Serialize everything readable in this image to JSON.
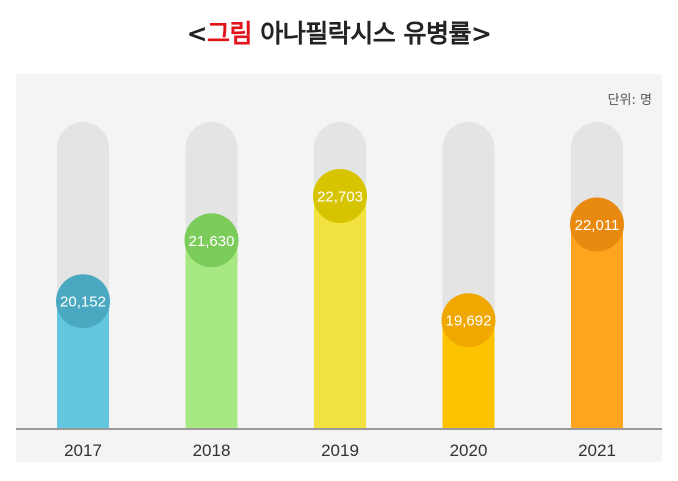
{
  "title": {
    "open": "<",
    "prefix": "그림",
    "rest": " 아나필락시스 유병률",
    "close": ">"
  },
  "colors": {
    "panel": "#f4f4f4",
    "track": "#e4e4e4",
    "title_accent": "#e0121a"
  },
  "chart_data": {
    "type": "bar",
    "title": "<그림 아나필락시스 유병률>",
    "unit_label": "단위: 명",
    "xlabel": "",
    "ylabel": "",
    "categories": [
      "2017",
      "2018",
      "2019",
      "2020",
      "2021"
    ],
    "values": [
      20152,
      21630,
      22703,
      19692,
      22011
    ],
    "value_labels": [
      "20,152",
      "21,630",
      "22,703",
      "19,692",
      "22,011"
    ],
    "grid": false,
    "legend": "none",
    "bar_colors": [
      "#62c6de",
      "#a7e882",
      "#f2e23f",
      "#fdc300",
      "#ffa41f"
    ],
    "bubble_colors": [
      "#4aa9c1",
      "#7ccc5b",
      "#d7c400",
      "#f0a800",
      "#e88a10"
    ]
  }
}
